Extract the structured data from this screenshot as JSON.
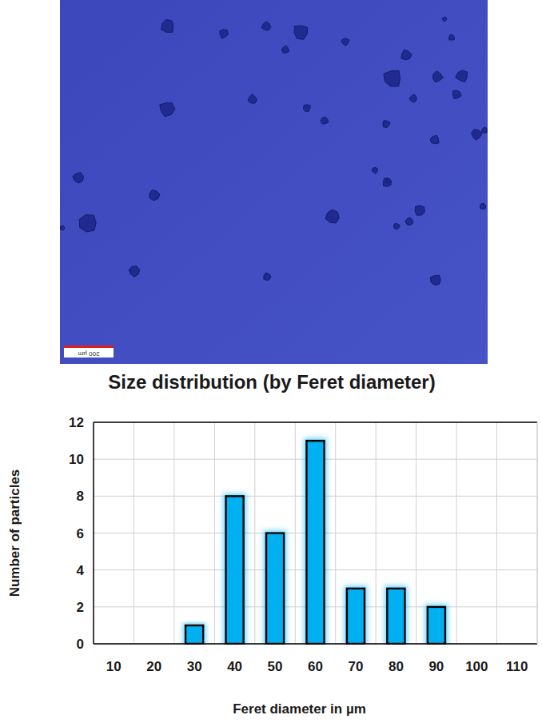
{
  "micrograph": {
    "scale_bar": "200 µm"
  },
  "chart_data": {
    "type": "bar",
    "title": "Size distribution (by Feret diameter)",
    "x_label": "Feret diameter in µm",
    "y_label": "Number of particles",
    "categories": [
      "10",
      "20",
      "30",
      "40",
      "50",
      "60",
      "70",
      "80",
      "90",
      "100",
      "110"
    ],
    "values": [
      0,
      0,
      1,
      8,
      6,
      11,
      3,
      3,
      2,
      0,
      0
    ],
    "color": "#00b0f0",
    "ylim": [
      0,
      12
    ],
    "yticks": [
      0,
      2,
      4,
      6,
      8,
      10,
      12
    ],
    "grid": true
  }
}
